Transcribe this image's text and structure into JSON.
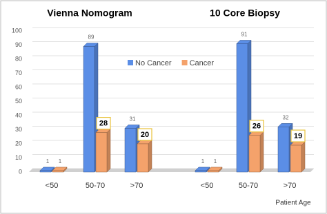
{
  "chart_data": {
    "type": "bar",
    "ylim": [
      0,
      100
    ],
    "yticks": [
      0,
      10,
      20,
      30,
      40,
      50,
      60,
      70,
      80,
      90,
      100
    ],
    "grid": true,
    "x_label": "Patient Age",
    "legend": "top-center",
    "series": [
      {
        "name": "No Cancer",
        "color": "#5b8ee6"
      },
      {
        "name": "Cancer",
        "color": "#f4a26b"
      }
    ],
    "panels": [
      {
        "title": "Vienna Nomogram",
        "categories": [
          "<50",
          "50-70",
          ">70"
        ],
        "values": [
          [
            1,
            89,
            31
          ],
          [
            1,
            28,
            20
          ]
        ]
      },
      {
        "title": "10 Core Biopsy",
        "categories": [
          "<50",
          "50-70",
          ">70"
        ],
        "values": [
          [
            1,
            91,
            32
          ],
          [
            1,
            26,
            19
          ]
        ]
      }
    ]
  }
}
